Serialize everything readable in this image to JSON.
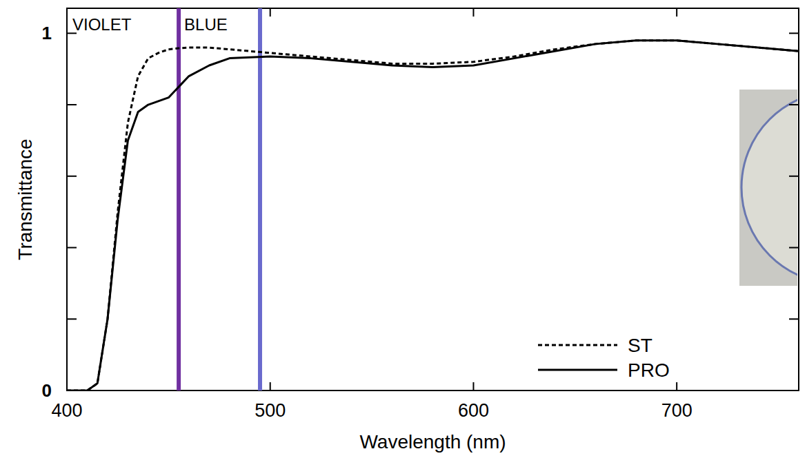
{
  "chart_data": {
    "type": "line",
    "x_label": "Wavelength (nm)",
    "y_label": "Transmittance",
    "x": [
      400,
      410,
      415,
      420,
      425,
      430,
      435,
      440,
      445,
      450,
      455,
      460,
      470,
      480,
      500,
      520,
      540,
      560,
      580,
      600,
      620,
      640,
      660,
      680,
      700,
      720,
      740,
      760
    ],
    "series": [
      {
        "name": "ST",
        "color": "#000000",
        "line_style": "dashed",
        "values": [
          0,
          0,
          0.02,
          0.2,
          0.5,
          0.75,
          0.88,
          0.93,
          0.945,
          0.955,
          0.958,
          0.96,
          0.96,
          0.955,
          0.945,
          0.935,
          0.925,
          0.915,
          0.915,
          0.92,
          0.935,
          0.955,
          0.97,
          0.98,
          0.98,
          0.97,
          0.96,
          0.95
        ]
      },
      {
        "name": "PRO",
        "color": "#000000",
        "line_style": "solid",
        "values": [
          0,
          0,
          0.02,
          0.2,
          0.48,
          0.7,
          0.78,
          0.8,
          0.81,
          0.82,
          0.85,
          0.88,
          0.91,
          0.93,
          0.935,
          0.93,
          0.92,
          0.91,
          0.905,
          0.91,
          0.93,
          0.95,
          0.97,
          0.98,
          0.98,
          0.97,
          0.96,
          0.95
        ]
      }
    ],
    "regions": [
      {
        "label": "VIOLET",
        "x": [
          400,
          455
        ],
        "color": "#7030a0"
      },
      {
        "label": "BLUE",
        "x": [
          455,
          495
        ],
        "color": "#6a6acd"
      }
    ],
    "xlim": [
      400,
      760
    ],
    "xticks": [
      400,
      500,
      600,
      700
    ],
    "ylim": [
      0,
      1.07
    ],
    "yticks": [
      0,
      1
    ],
    "yticks_minor": [
      0.2,
      0.4,
      0.6,
      0.8
    ],
    "legend": "lower right",
    "grid": false
  }
}
